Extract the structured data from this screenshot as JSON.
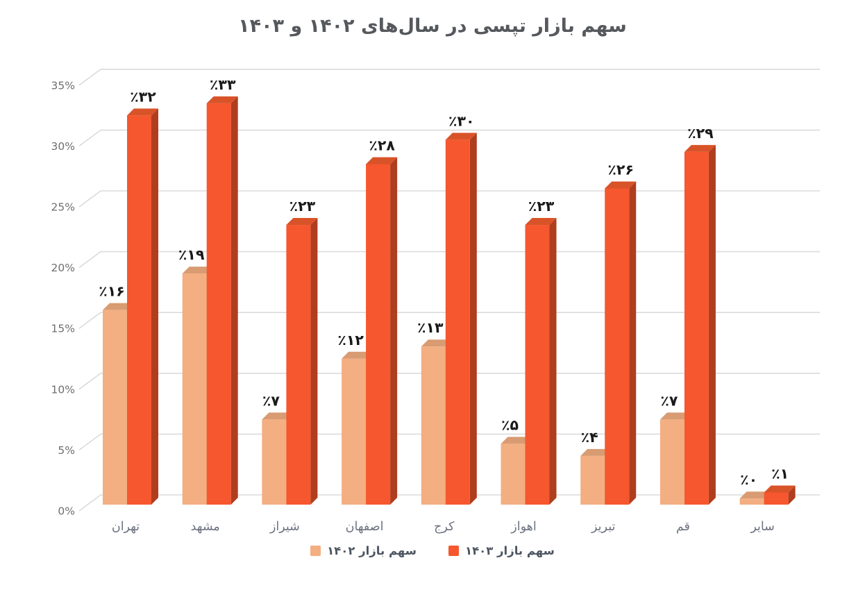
{
  "title": "سهم بازار تپسی در سال‌های ۱۴۰۲ و ۱۴۰۳",
  "legend": {
    "items": [
      {
        "label": "سهم بازار ۱۴۰۳",
        "color": "#f6572e"
      },
      {
        "label": "سهم بازار ۱۴۰۲",
        "color": "#f3ae81"
      }
    ]
  },
  "colors": {
    "series_1402_front": "#f3ae81",
    "series_1402_top": "#d89b72",
    "series_1402_side": "#c88a63",
    "series_1403_front": "#f6572e",
    "series_1403_top": "#d95329",
    "series_1403_side": "#af3e1f",
    "gridline": "#dbdbdb",
    "tick_text": "#6e6e6e",
    "category_text": "#6c7280",
    "value_text": "#191919",
    "title_text": "#55585c"
  },
  "chart_data": {
    "type": "bar",
    "style": "3d-grouped-columns",
    "title": "سهم بازار تپسی در سال‌های ۱۴۰۲ و ۱۴۰۳",
    "categories": [
      "تهران",
      "مشهد",
      "شیراز",
      "اصفهان",
      "کرج",
      "اهواز",
      "تبریز",
      "قم",
      "سایر"
    ],
    "series": [
      {
        "name": "سهم بازار ۱۴۰۲",
        "color": "#f3ae81",
        "values": [
          16,
          19,
          7,
          12,
          13,
          5,
          4,
          7,
          0
        ],
        "labels": [
          "٪۱۶",
          "٪۱۹",
          "٪۷",
          "٪۱۲",
          "٪۱۳",
          "٪۵",
          "٪۴",
          "٪۷",
          "٪۰"
        ]
      },
      {
        "name": "سهم بازار ۱۴۰۳",
        "color": "#f6572e",
        "values": [
          32,
          33,
          23,
          28,
          30,
          23,
          26,
          29,
          1
        ],
        "labels": [
          "٪۳۲",
          "٪۳۳",
          "٪۲۳",
          "٪۲۸",
          "٪۳۰",
          "٪۲۳",
          "٪۲۶",
          "٪۲۹",
          "٪۱"
        ]
      }
    ],
    "xlabel": "",
    "ylabel": "",
    "ylim": [
      0,
      35
    ],
    "yticks": [
      "0%",
      "5%",
      "10%",
      "15%",
      "20%",
      "25%",
      "30%",
      "35%"
    ],
    "grid": true,
    "legend_position": "bottom"
  }
}
